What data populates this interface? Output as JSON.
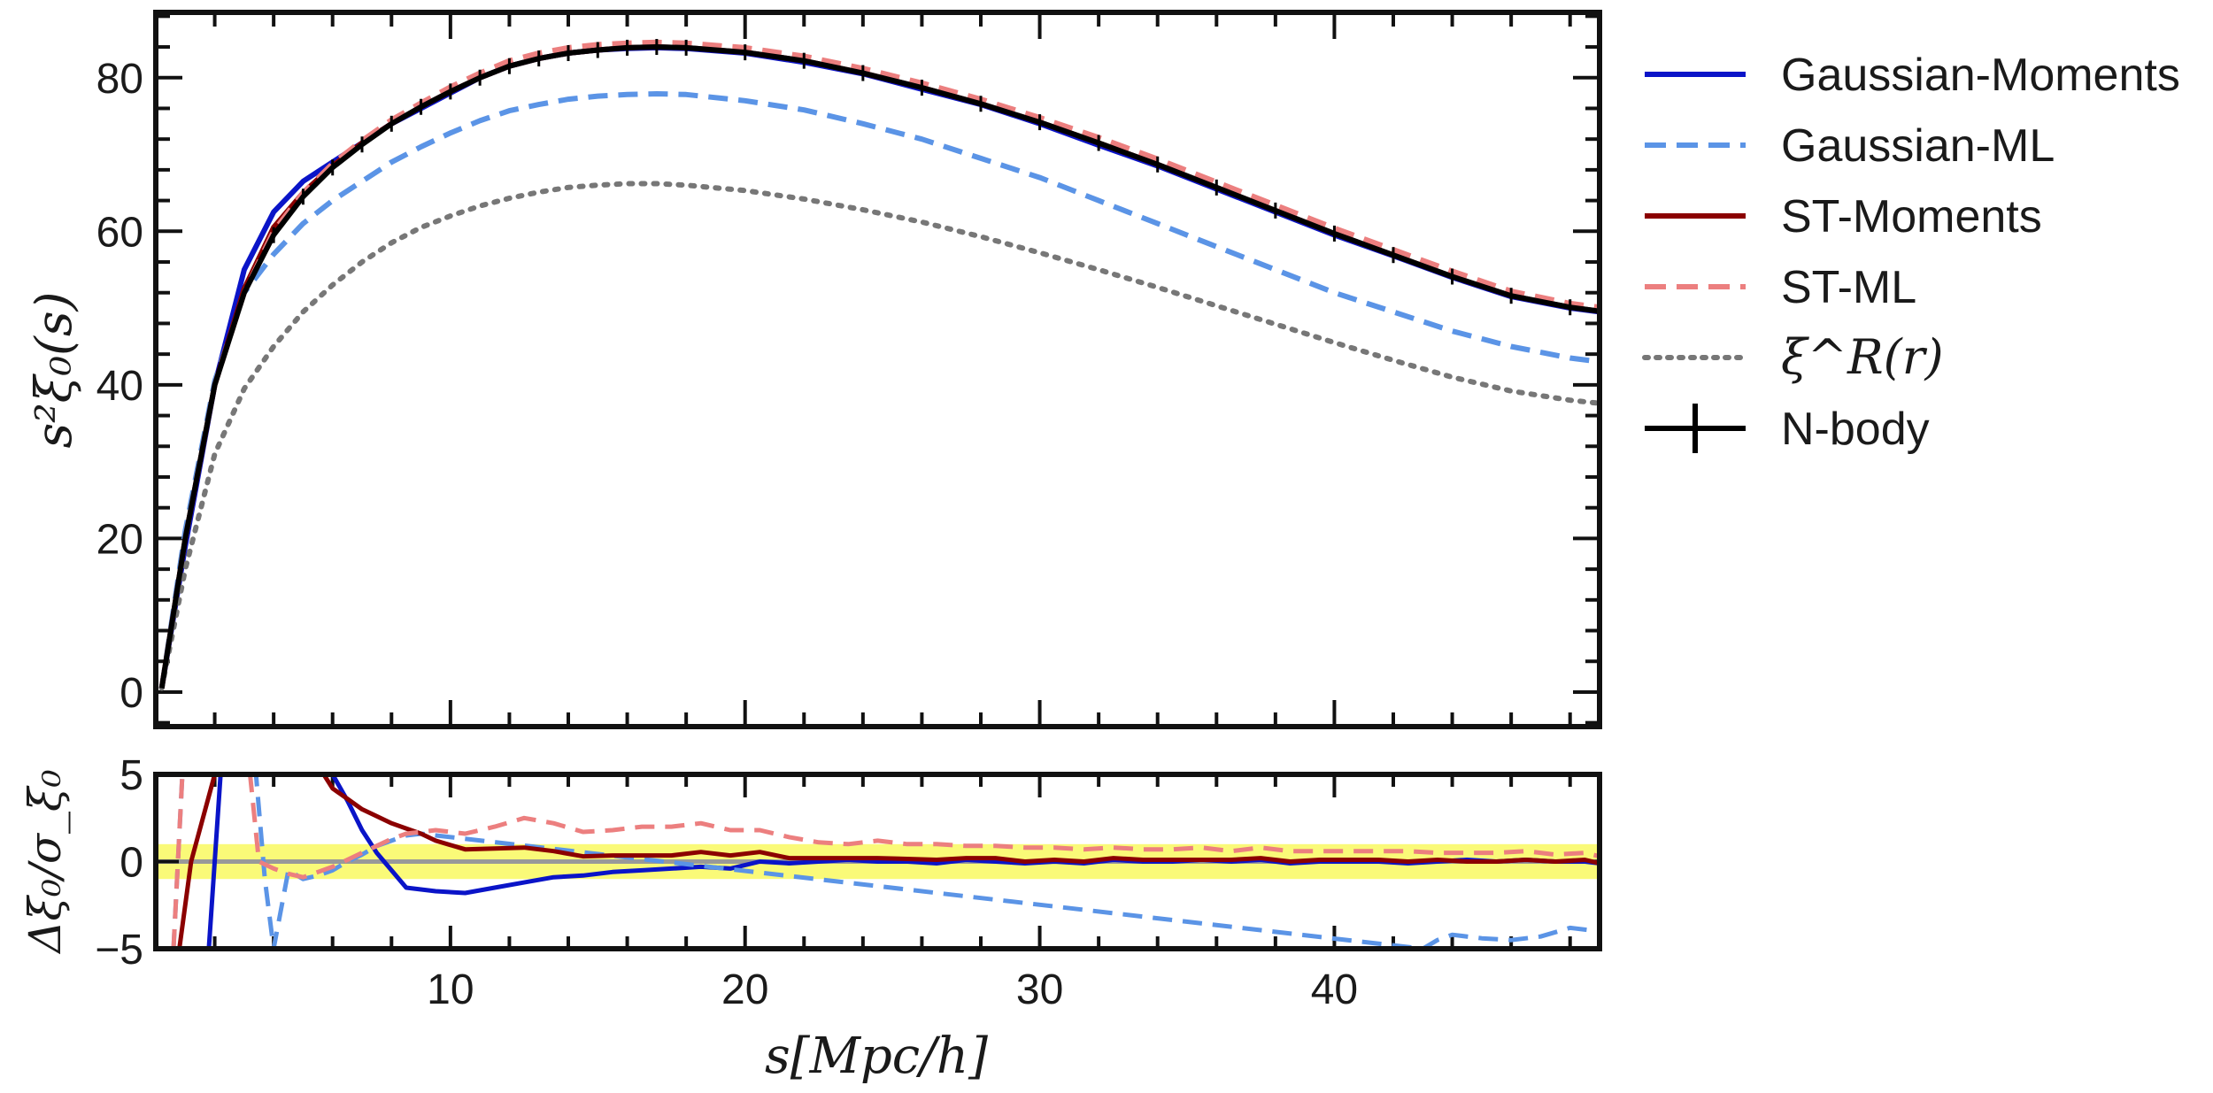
{
  "chart_data": [
    {
      "type": "line",
      "panel": "main",
      "ylabel": "s²ξ₀(s)",
      "xlim": [
        0,
        49
      ],
      "ylim": [
        -4.5,
        88.5
      ],
      "yticks": [
        0,
        20,
        40,
        60,
        80
      ],
      "ytick_labels": [
        "0",
        "20",
        "40",
        "60",
        "80"
      ],
      "legend_position": "outside-right",
      "series": [
        {
          "name": "Gaussian-Moments",
          "color": "#0a14c8",
          "style": "solid",
          "x": [
            0.2,
            1,
            2,
            3,
            4,
            5,
            6,
            7,
            8,
            9,
            10,
            11,
            12,
            13,
            14,
            15,
            16,
            17,
            18,
            20,
            22,
            24,
            26,
            28,
            30,
            32,
            34,
            36,
            38,
            40,
            42,
            44,
            46,
            48,
            49
          ],
          "y": [
            0.5,
            19,
            40,
            55,
            62.5,
            66.5,
            69,
            71.5,
            74,
            76,
            78,
            80,
            81.5,
            82.5,
            83.2,
            83.6,
            83.8,
            83.9,
            83.8,
            83.2,
            82,
            80.5,
            78.5,
            76.5,
            74,
            71.2,
            68.5,
            65.5,
            62.5,
            59.5,
            56.8,
            54,
            51.5,
            50,
            49.5
          ]
        },
        {
          "name": "Gaussian-ML",
          "color": "#5b94e6",
          "style": "dashed",
          "x": [
            0.2,
            1,
            2,
            3,
            4,
            5,
            6,
            7,
            8,
            9,
            10,
            11,
            12,
            13,
            14,
            15,
            16,
            17,
            18,
            20,
            22,
            24,
            26,
            28,
            30,
            32,
            34,
            36,
            38,
            40,
            42,
            44,
            46,
            48,
            49
          ],
          "y": [
            0.5,
            21,
            40.5,
            52,
            57,
            61,
            64,
            66.5,
            69,
            71,
            72.8,
            74.4,
            75.7,
            76.5,
            77.2,
            77.6,
            77.8,
            77.9,
            77.8,
            77,
            75.8,
            74,
            72,
            69.5,
            67,
            64,
            61,
            58,
            55,
            52,
            49.5,
            47,
            45,
            43.5,
            43
          ]
        },
        {
          "name": "ST-Moments",
          "color": "#8b0000",
          "style": "solid",
          "x": [
            0.2,
            1,
            2,
            3,
            4,
            5,
            6,
            7,
            8,
            9,
            10,
            11,
            12,
            13,
            14,
            15,
            16,
            17,
            18,
            20,
            22,
            24,
            26,
            28,
            30,
            32,
            34,
            36,
            38,
            40,
            42,
            44,
            46,
            48,
            49
          ],
          "y": [
            0.5,
            20,
            40,
            52.5,
            60.5,
            65,
            68.5,
            71.5,
            74,
            76.2,
            78.2,
            80,
            81.5,
            82.5,
            83.2,
            83.6,
            83.9,
            84,
            83.9,
            83.3,
            82.2,
            80.6,
            78.7,
            76.6,
            74.2,
            71.5,
            68.7,
            65.7,
            62.7,
            59.7,
            56.9,
            54.1,
            51.6,
            50.1,
            49.6
          ]
        },
        {
          "name": "ST-ML",
          "color": "#ec7f7f",
          "style": "dashed",
          "x": [
            0.2,
            1,
            2,
            3,
            4,
            5,
            6,
            7,
            8,
            9,
            10,
            11,
            12,
            13,
            14,
            15,
            16,
            17,
            18,
            20,
            22,
            24,
            26,
            28,
            30,
            32,
            34,
            36,
            38,
            40,
            42,
            44,
            46,
            48,
            49
          ],
          "y": [
            0.5,
            20,
            40,
            52,
            60,
            65,
            68.8,
            71.8,
            74.5,
            76.7,
            78.8,
            80.6,
            82.2,
            83.2,
            83.9,
            84.3,
            84.5,
            84.6,
            84.5,
            83.9,
            82.8,
            81.2,
            79.3,
            77.2,
            74.8,
            72.2,
            69.4,
            66.4,
            63.4,
            60.4,
            57.6,
            54.8,
            52.2,
            50.6,
            50.1
          ]
        },
        {
          "name": "ξ^R(r)",
          "color": "#777777",
          "style": "dotted",
          "x": [
            0.2,
            1,
            2,
            3,
            4,
            5,
            6,
            7,
            8,
            9,
            10,
            11,
            12,
            13,
            14,
            15,
            16,
            17,
            18,
            20,
            22,
            24,
            26,
            28,
            30,
            32,
            34,
            36,
            38,
            40,
            42,
            44,
            46,
            48,
            49
          ],
          "y": [
            0.5,
            16,
            31,
            39.5,
            45,
            49.5,
            53,
            56,
            58.5,
            60.5,
            62,
            63.3,
            64.3,
            65.1,
            65.7,
            66,
            66.2,
            66.2,
            66,
            65.3,
            64.2,
            62.8,
            61.2,
            59.3,
            57.2,
            55,
            52.7,
            50.3,
            47.9,
            45.5,
            43.2,
            41,
            39.2,
            38,
            37.6
          ]
        },
        {
          "name": "N-body",
          "color": "#000000",
          "style": "solid-errorbar",
          "x": [
            0.2,
            1,
            2,
            3,
            4,
            5,
            6,
            7,
            8,
            9,
            10,
            11,
            12,
            13,
            14,
            15,
            16,
            17,
            18,
            20,
            22,
            24,
            26,
            28,
            30,
            32,
            34,
            36,
            38,
            40,
            42,
            44,
            46,
            48,
            49
          ],
          "y": [
            0.5,
            20,
            40,
            52,
            59.5,
            64.5,
            68.3,
            71.3,
            74,
            76.2,
            78.2,
            80,
            81.5,
            82.5,
            83.2,
            83.6,
            83.9,
            84,
            83.9,
            83.3,
            82.2,
            80.6,
            78.7,
            76.6,
            74.2,
            71.5,
            68.7,
            65.7,
            62.7,
            59.7,
            56.9,
            54.1,
            51.6,
            50.1,
            49.6
          ]
        }
      ]
    },
    {
      "type": "line",
      "panel": "residual",
      "xlabel": "s[Mpc/h]",
      "ylabel": "Δξ₀/σ_ξ₀",
      "xlim": [
        0,
        49
      ],
      "ylim": [
        -5,
        5
      ],
      "xticks": [
        10,
        20,
        30,
        40
      ],
      "xtick_labels": [
        "10",
        "20",
        "30",
        "40"
      ],
      "yticks": [
        -5,
        0,
        5
      ],
      "ytick_labels": [
        "−5",
        "0",
        "5"
      ],
      "band": [
        -1,
        1
      ],
      "band_color": "#fafa78",
      "zero_line_color": "#999999",
      "series": [
        {
          "name": "Gaussian-Moments",
          "color": "#0a14c8",
          "style": "solid",
          "x": [
            1.8,
            2.2,
            6,
            6.5,
            7,
            7.5,
            8,
            8.5,
            9,
            9.5,
            10.5,
            11.5,
            12.5,
            13.5,
            14.5,
            15.5,
            16.5,
            17.5,
            18.5,
            19.5,
            20.5,
            21.5,
            22.5,
            23.5,
            24.5,
            25.5,
            26.5,
            27.5,
            28.5,
            29.5,
            30.5,
            31.5,
            32.5,
            33.5,
            34.5,
            35.5,
            36.5,
            37.5,
            38.5,
            39.5,
            40.5,
            41.5,
            42.5,
            43.5,
            44.5,
            45.5,
            46.5,
            47.5,
            48.5,
            49
          ],
          "y": [
            -5,
            5,
            5,
            3.5,
            1.8,
            0.5,
            -0.5,
            -1.5,
            -1.6,
            -1.7,
            -1.8,
            -1.5,
            -1.2,
            -0.9,
            -0.8,
            -0.6,
            -0.5,
            -0.4,
            -0.3,
            -0.4,
            0,
            -0.1,
            0,
            0.1,
            0,
            0,
            -0.1,
            0.1,
            0,
            -0.1,
            0,
            -0.1,
            0.1,
            0,
            0,
            0.1,
            0,
            0.1,
            -0.1,
            0,
            0,
            0,
            -0.1,
            0,
            0.1,
            0,
            0.1,
            0,
            0,
            -0.1
          ]
        },
        {
          "name": "Gaussian-ML",
          "color": "#5b94e6",
          "style": "dashed",
          "x": [
            0.6,
            0.9,
            3.4,
            3.7,
            4,
            4.5,
            5,
            5.5,
            6,
            6.5,
            7,
            7.5,
            8,
            8.5,
            9,
            43,
            43.5,
            44,
            45,
            46,
            47,
            48,
            49
          ],
          "y": [
            -5,
            5,
            5,
            -1,
            -5,
            -0.5,
            -1,
            -0.8,
            -0.5,
            0,
            0.4,
            0.9,
            1.2,
            1.5,
            1.6,
            -5,
            -4.5,
            -4.2,
            -4.4,
            -4.5,
            -4.3,
            -3.8,
            -4
          ]
        },
        {
          "name": "ST-Moments",
          "color": "#8b0000",
          "style": "solid",
          "x": [
            0.8,
            1.2,
            2,
            5.7,
            6,
            6.5,
            7,
            7.5,
            8,
            8.5,
            9,
            9.5,
            10.5,
            11.5,
            12.5,
            13.5,
            14.5,
            15.5,
            16.5,
            17.5,
            18.5,
            19.5,
            20.5,
            21.5,
            22.5,
            23.5,
            24.5,
            25.5,
            26.5,
            27.5,
            28.5,
            29.5,
            30.5,
            31.5,
            32.5,
            33.5,
            34.5,
            35.5,
            36.5,
            37.5,
            38.5,
            39.5,
            40.5,
            41.5,
            42.5,
            43.5,
            44.5,
            45.5,
            46.5,
            47.5,
            48.5,
            49
          ],
          "y": [
            -5,
            0,
            5,
            5,
            4.2,
            3.6,
            3,
            2.6,
            2.2,
            1.9,
            1.6,
            1.2,
            0.7,
            0.75,
            0.8,
            0.6,
            0.3,
            0.35,
            0.35,
            0.35,
            0.55,
            0.35,
            0.55,
            0.2,
            0.2,
            0.2,
            0.2,
            0.15,
            0.1,
            0.2,
            0.2,
            0,
            0.1,
            0,
            0.2,
            0.1,
            0.1,
            0.1,
            0.1,
            0.2,
            0,
            0.1,
            0.1,
            0.1,
            0,
            0.1,
            0,
            0,
            0.1,
            0,
            0.1,
            -0.1
          ]
        },
        {
          "name": "ST-ML",
          "color": "#ec7f7f",
          "style": "dashed",
          "x": [
            0.6,
            0.9,
            3.2,
            3.5,
            4,
            4.5,
            5,
            5.5,
            6,
            6.5,
            7,
            7.5,
            8,
            8.5,
            9.5,
            10.5,
            11.5,
            12.5,
            13.5,
            14.5,
            15.5,
            16.5,
            17.5,
            18.5,
            19.5,
            20.5,
            21.5,
            22.5,
            23.5,
            24.5,
            25.5,
            26.5,
            27.5,
            28.5,
            29.5,
            30.5,
            31.5,
            32.5,
            33.5,
            34.5,
            35.5,
            36.5,
            37.5,
            38.5,
            39.5,
            40.5,
            41.5,
            42.5,
            43.5,
            44.5,
            45.5,
            46.5,
            47.5,
            48.5,
            49
          ],
          "y": [
            -5,
            5,
            5,
            0,
            -0.4,
            -0.7,
            -0.9,
            -0.6,
            -0.3,
            0.1,
            0.5,
            0.9,
            1.3,
            1.6,
            1.8,
            1.6,
            2,
            2.5,
            2.2,
            1.7,
            1.8,
            2,
            2,
            2.2,
            1.8,
            1.8,
            1.4,
            1.1,
            1,
            1.2,
            1,
            1,
            0.9,
            0.9,
            0.8,
            0.8,
            0.7,
            0.8,
            0.7,
            0.7,
            0.8,
            0.6,
            0.8,
            0.6,
            0.6,
            0.6,
            0.6,
            0.6,
            0.5,
            0.5,
            0.5,
            0.6,
            0.4,
            0.5,
            0.3
          ]
        }
      ]
    }
  ]
}
